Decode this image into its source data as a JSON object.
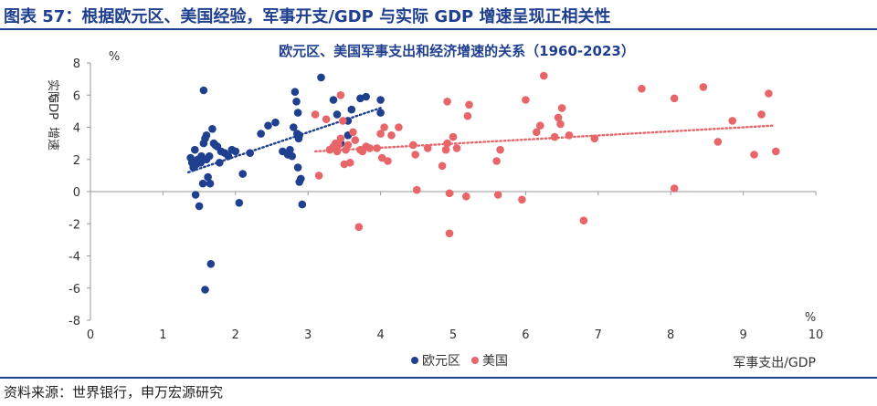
{
  "header": {
    "title": "图表 57：根据欧元区、美国经验，军事开支/GDP 与实际 GDP 增速呈现正相关性"
  },
  "source": "资料来源：世界银行，申万宏源研究",
  "colors": {
    "brand": "#1f3f8f",
    "eurozone": "#1f3f8f",
    "usa": "#e8656a",
    "axis": "#999999"
  },
  "chart_data": {
    "type": "scatter",
    "title": "欧元区、美国军事支出和经济增速的关系（1960-2023）",
    "xlabel": "军事支出/GDP",
    "x_unit": "%",
    "ylabel": [
      "实际",
      "GDP",
      "增速"
    ],
    "y_unit": "%",
    "xlim": [
      0,
      10
    ],
    "ylim": [
      -8,
      8
    ],
    "xticks": [
      0,
      1,
      2,
      3,
      4,
      5,
      6,
      7,
      8,
      9,
      10
    ],
    "yticks": [
      8,
      6,
      4,
      2,
      0,
      -2,
      -4,
      -6,
      -8
    ],
    "trendline": "dotted linear",
    "series": [
      {
        "name": "欧元区",
        "trend": [
          [
            1.35,
            1.2
          ],
          [
            4.0,
            5.2
          ]
        ],
        "points": [
          [
            1.38,
            2.1
          ],
          [
            1.4,
            1.8
          ],
          [
            1.42,
            1.5
          ],
          [
            1.44,
            2.6
          ],
          [
            1.46,
            1.7
          ],
          [
            1.48,
            2.0
          ],
          [
            1.45,
            -0.2
          ],
          [
            1.5,
            -0.9
          ],
          [
            1.52,
            1.8
          ],
          [
            1.53,
            2.2
          ],
          [
            1.55,
            0.5
          ],
          [
            1.56,
            3.0
          ],
          [
            1.56,
            6.3
          ],
          [
            1.58,
            3.3
          ],
          [
            1.6,
            3.5
          ],
          [
            1.6,
            2.0
          ],
          [
            1.62,
            0.9
          ],
          [
            1.64,
            2.2
          ],
          [
            1.65,
            0.5
          ],
          [
            1.66,
            -4.5
          ],
          [
            1.68,
            3.9
          ],
          [
            1.7,
            3.0
          ],
          [
            1.72,
            2.9
          ],
          [
            1.75,
            2.8
          ],
          [
            1.78,
            1.8
          ],
          [
            1.8,
            2.5
          ],
          [
            1.85,
            2.4
          ],
          [
            1.9,
            2.2
          ],
          [
            1.95,
            2.6
          ],
          [
            2.0,
            2.5
          ],
          [
            1.58,
            -6.1
          ],
          [
            2.05,
            -0.7
          ],
          [
            2.1,
            1.1
          ],
          [
            2.2,
            2.4
          ],
          [
            2.35,
            3.6
          ],
          [
            2.45,
            4.1
          ],
          [
            2.55,
            4.3
          ],
          [
            2.65,
            2.5
          ],
          [
            2.72,
            2.3
          ],
          [
            2.75,
            2.6
          ],
          [
            2.78,
            2.2
          ],
          [
            2.8,
            4.0
          ],
          [
            2.82,
            6.2
          ],
          [
            2.84,
            5.6
          ],
          [
            2.85,
            3.6
          ],
          [
            2.86,
            4.9
          ],
          [
            2.87,
            3.3
          ],
          [
            2.88,
            3.5
          ],
          [
            2.86,
            1.5
          ],
          [
            2.88,
            0.6
          ],
          [
            2.9,
            0.8
          ],
          [
            2.92,
            -0.8
          ],
          [
            3.18,
            7.1
          ],
          [
            3.35,
            5.7
          ],
          [
            3.4,
            4.8
          ],
          [
            3.45,
            3.0
          ],
          [
            3.55,
            3.5
          ],
          [
            3.6,
            5.1
          ],
          [
            3.55,
            4.4
          ],
          [
            3.72,
            5.8
          ],
          [
            3.8,
            5.9
          ],
          [
            4.0,
            5.7
          ],
          [
            4.0,
            4.9
          ]
        ]
      },
      {
        "name": "美国",
        "trend": [
          [
            3.1,
            2.5
          ],
          [
            9.4,
            4.1
          ]
        ],
        "points": [
          [
            3.1,
            4.8
          ],
          [
            3.15,
            1.0
          ],
          [
            3.25,
            4.5
          ],
          [
            3.3,
            2.6
          ],
          [
            3.35,
            2.8
          ],
          [
            3.38,
            3.0
          ],
          [
            3.4,
            2.5
          ],
          [
            3.42,
            2.9
          ],
          [
            3.45,
            3.3
          ],
          [
            3.48,
            4.4
          ],
          [
            3.45,
            6.0
          ],
          [
            3.5,
            1.7
          ],
          [
            3.52,
            2.6
          ],
          [
            3.55,
            2.9
          ],
          [
            3.58,
            1.8
          ],
          [
            3.62,
            3.7
          ],
          [
            3.65,
            3.2
          ],
          [
            3.7,
            -2.2
          ],
          [
            3.72,
            2.6
          ],
          [
            3.75,
            2.5
          ],
          [
            3.8,
            2.8
          ],
          [
            3.85,
            2.7
          ],
          [
            3.95,
            2.7
          ],
          [
            4.0,
            3.6
          ],
          [
            4.02,
            2.1
          ],
          [
            4.05,
            4.0
          ],
          [
            4.1,
            1.9
          ],
          [
            4.15,
            3.5
          ],
          [
            4.25,
            4.0
          ],
          [
            4.45,
            2.9
          ],
          [
            4.48,
            2.3
          ],
          [
            4.5,
            0.1
          ],
          [
            4.65,
            2.7
          ],
          [
            4.85,
            1.6
          ],
          [
            4.92,
            5.6
          ],
          [
            4.9,
            2.6
          ],
          [
            4.92,
            3.0
          ],
          [
            4.95,
            -0.1
          ],
          [
            4.95,
            -2.6
          ],
          [
            5.0,
            3.4
          ],
          [
            5.05,
            2.7
          ],
          [
            5.2,
            4.7
          ],
          [
            5.22,
            5.4
          ],
          [
            5.18,
            -0.3
          ],
          [
            5.6,
            1.9
          ],
          [
            5.62,
            -0.2
          ],
          [
            5.65,
            2.6
          ],
          [
            5.95,
            -0.5
          ],
          [
            6.0,
            5.7
          ],
          [
            6.15,
            3.7
          ],
          [
            6.2,
            4.1
          ],
          [
            6.25,
            7.2
          ],
          [
            6.4,
            3.4
          ],
          [
            6.45,
            4.6
          ],
          [
            6.48,
            4.2
          ],
          [
            6.5,
            5.2
          ],
          [
            6.6,
            3.5
          ],
          [
            6.8,
            -1.8
          ],
          [
            6.95,
            3.3
          ],
          [
            7.6,
            6.4
          ],
          [
            8.05,
            0.2
          ],
          [
            8.05,
            5.8
          ],
          [
            8.45,
            6.5
          ],
          [
            8.65,
            3.1
          ],
          [
            8.85,
            4.4
          ],
          [
            9.15,
            2.3
          ],
          [
            9.25,
            4.8
          ],
          [
            9.35,
            6.1
          ],
          [
            9.45,
            2.5
          ]
        ]
      }
    ]
  }
}
